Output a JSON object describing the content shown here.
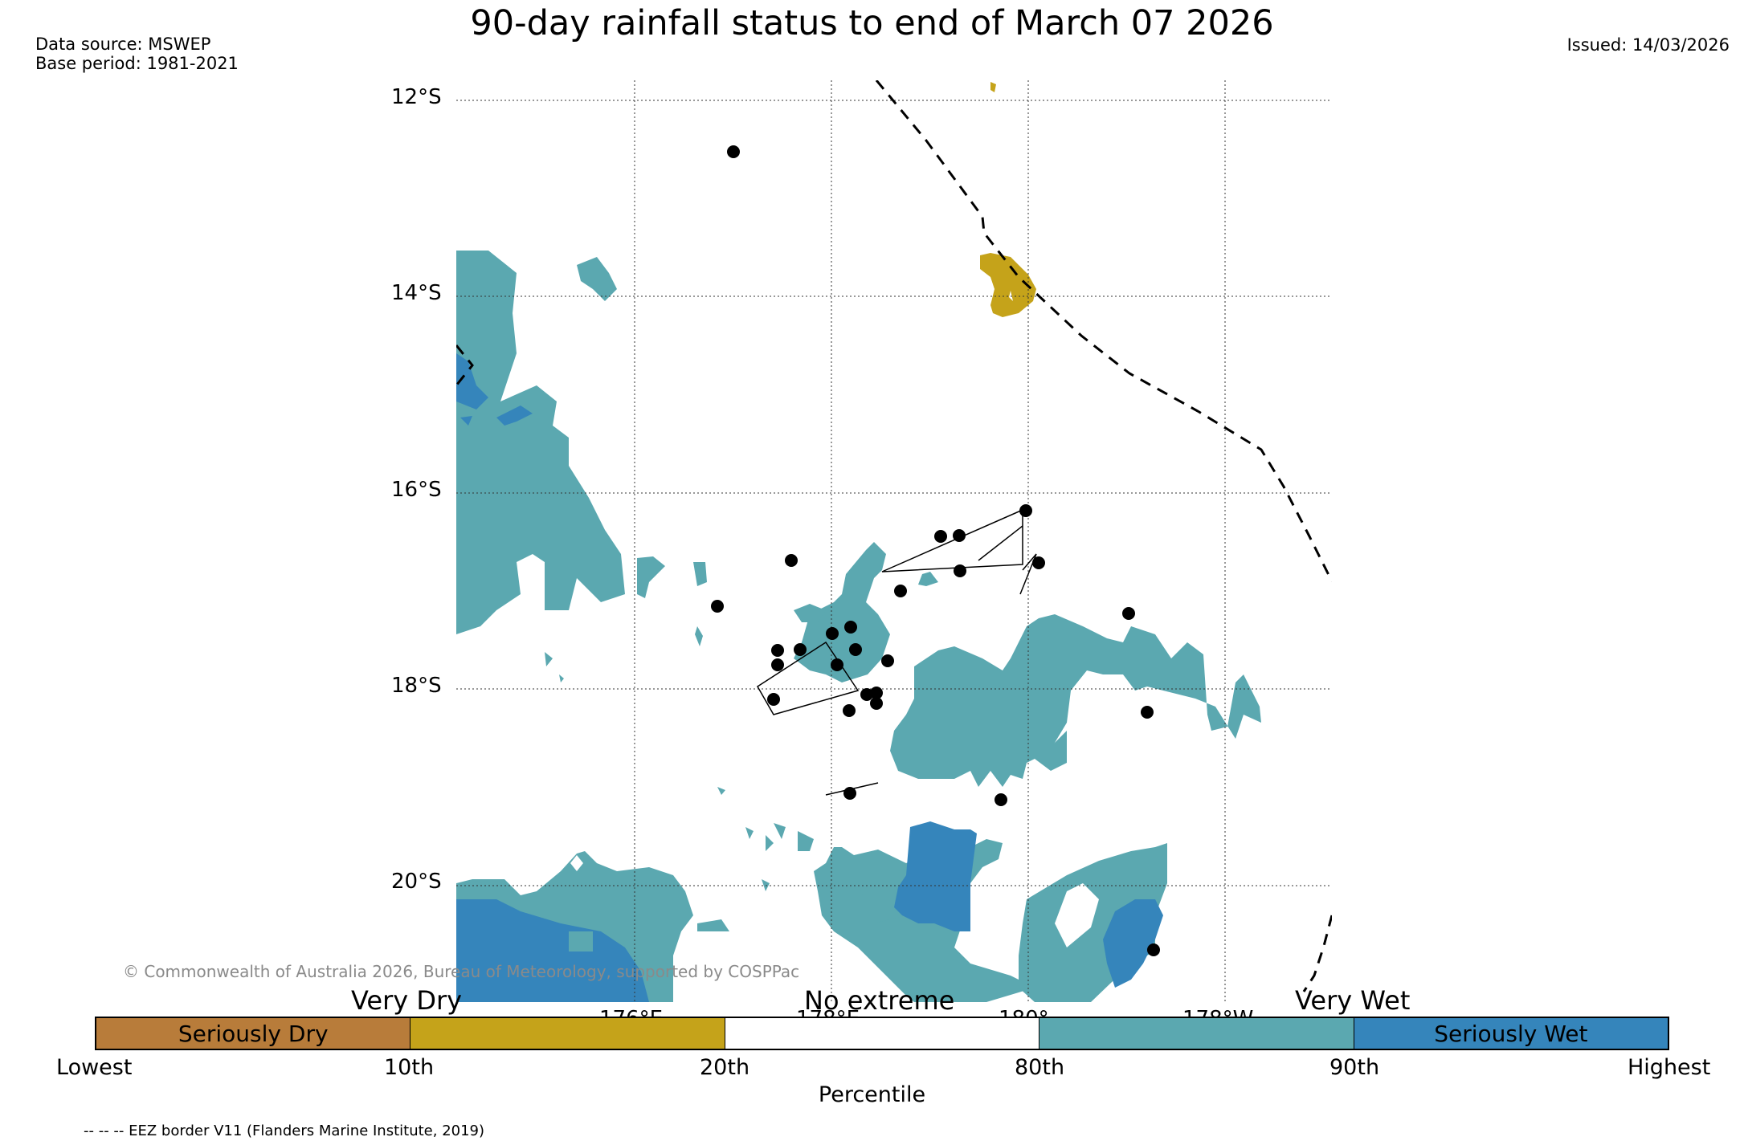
{
  "title": "90-day rainfall status to end of March 07 2026",
  "data_source": "Data source: MSWEP",
  "base_period": "Base period: 1981-2021",
  "issued": "Issued: 14/03/2026",
  "map": {
    "lat_labels": [
      "12°S",
      "14°S",
      "16°S",
      "18°S",
      "20°S"
    ],
    "lon_labels": [
      "176°E",
      "178°E",
      "180°",
      "178°W"
    ],
    "colors": {
      "seriously_dry": "#b87c3a",
      "dry": "#c5a31a",
      "no_extreme": "#ffffff",
      "wet": "#5ba8b0",
      "seriously_wet": "#3585bb",
      "eez_line": "#000000",
      "station": "#000000"
    }
  },
  "copyright": "© Commonwealth of Australia 2026, Bureau of Meteorology, supported by COSPPac",
  "legend": {
    "very_dry": "Very Dry",
    "no_extreme": "No extreme",
    "very_wet": "Very Wet",
    "segments": [
      {
        "label": "Seriously Dry",
        "color": "#b87c3a"
      },
      {
        "label": "",
        "color": "#c5a31a"
      },
      {
        "label": "",
        "color": "#ffffff"
      },
      {
        "label": "",
        "color": "#5ba8b0"
      },
      {
        "label": "Seriously Wet",
        "color": "#3585bb"
      }
    ],
    "ticks": [
      "Lowest",
      "10th",
      "20th",
      "80th",
      "90th",
      "Highest"
    ],
    "axis_label": "Percentile"
  },
  "eez_note": "-- -- -- EEZ border V11 (Flanders Marine Institute, 2019)"
}
